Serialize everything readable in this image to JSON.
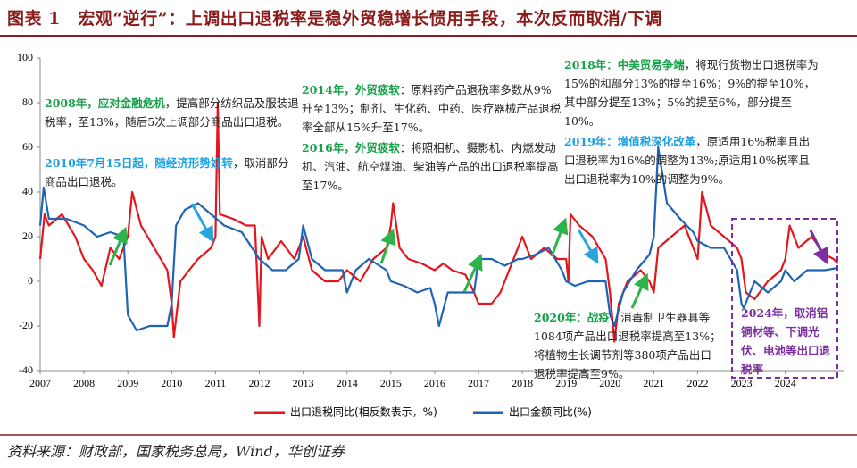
{
  "chart_data": {
    "type": "line",
    "title": "图表 1　宏观“逆行”：上调出口退税率是稳外贸稳增长惯用手段，本次反而取消/下调",
    "source": "资料来源：财政部，国家税务总局，Wind，华创证券",
    "xlim": [
      2007,
      2025.33
    ],
    "xticks": [
      2007,
      2008,
      2009,
      2010,
      2011,
      2012,
      2013,
      2014,
      2015,
      2016,
      2017,
      2018,
      2019,
      2020,
      2021,
      2022,
      2023,
      2024
    ],
    "ylim": [
      -40,
      100
    ],
    "yticks": [
      -40,
      -20,
      0,
      20,
      40,
      60,
      80,
      100
    ],
    "series": [
      {
        "name": "出口退税同比(相反数表示，%)",
        "color": "#e3161e",
        "x": [
          2007.0,
          2007.1,
          2007.2,
          2007.5,
          2007.8,
          2008.0,
          2008.2,
          2008.4,
          2008.6,
          2008.8,
          2009.0,
          2009.1,
          2009.3,
          2009.6,
          2009.9,
          2010.0,
          2010.05,
          2010.2,
          2010.4,
          2010.6,
          2010.9,
          2011.0,
          2011.05,
          2011.1,
          2011.4,
          2011.7,
          2011.9,
          2012.0,
          2012.05,
          2012.2,
          2012.5,
          2012.8,
          2013.0,
          2013.2,
          2013.5,
          2013.8,
          2014.0,
          2014.3,
          2014.6,
          2014.9,
          2015.0,
          2015.05,
          2015.2,
          2015.4,
          2015.7,
          2016.0,
          2016.2,
          2016.4,
          2016.7,
          2016.9,
          2017.0,
          2017.3,
          2017.5,
          2017.8,
          2018.0,
          2018.2,
          2018.5,
          2018.8,
          2019.0,
          2019.05,
          2019.1,
          2019.3,
          2019.6,
          2019.9,
          2020.0,
          2020.1,
          2020.2,
          2020.4,
          2020.7,
          2020.9,
          2021.0,
          2021.1,
          2021.4,
          2021.7,
          2021.9,
          2022.0,
          2022.1,
          2022.3,
          2022.6,
          2022.9,
          2023.0,
          2023.1,
          2023.3,
          2023.6,
          2023.9,
          2024.0,
          2024.1,
          2024.3,
          2024.6,
          2024.9,
          2025.1,
          2025.2
        ],
        "values": [
          10,
          30,
          25,
          30,
          20,
          10,
          5,
          -2,
          15,
          10,
          20,
          40,
          25,
          15,
          5,
          -10,
          -25,
          0,
          5,
          10,
          15,
          20,
          80,
          30,
          28,
          25,
          25,
          -20,
          20,
          10,
          18,
          10,
          20,
          5,
          0,
          0,
          5,
          0,
          10,
          15,
          25,
          35,
          15,
          10,
          8,
          5,
          8,
          5,
          3,
          -5,
          -10,
          -10,
          -5,
          10,
          20,
          10,
          15,
          10,
          10,
          0,
          30,
          25,
          20,
          10,
          -5,
          -27,
          -10,
          0,
          5,
          0,
          -5,
          15,
          20,
          25,
          15,
          10,
          40,
          25,
          20,
          15,
          10,
          -5,
          -8,
          0,
          5,
          10,
          25,
          15,
          20,
          12,
          10,
          8
        ]
      },
      {
        "name": "出口金额同比(%)",
        "color": "#1f64b4",
        "x": [
          2007.0,
          2007.08,
          2007.2,
          2007.6,
          2008.0,
          2008.3,
          2008.6,
          2008.9,
          2009.0,
          2009.2,
          2009.5,
          2009.9,
          2010.0,
          2010.1,
          2010.3,
          2010.6,
          2010.9,
          2011.2,
          2011.6,
          2012.0,
          2012.3,
          2012.6,
          2012.9,
          2013.0,
          2013.2,
          2013.5,
          2013.9,
          2014.0,
          2014.2,
          2014.5,
          2014.9,
          2015.0,
          2015.3,
          2015.6,
          2015.9,
          2016.0,
          2016.1,
          2016.3,
          2016.6,
          2016.9,
          2017.0,
          2017.3,
          2017.6,
          2017.9,
          2018.0,
          2018.3,
          2018.6,
          2018.9,
          2019.0,
          2019.2,
          2019.5,
          2019.9,
          2020.0,
          2020.1,
          2020.3,
          2020.6,
          2020.9,
          2021.0,
          2021.1,
          2021.3,
          2021.6,
          2021.9,
          2022.0,
          2022.3,
          2022.6,
          2022.9,
          2023.0,
          2023.05,
          2023.3,
          2023.6,
          2023.9,
          2024.0,
          2024.2,
          2024.5,
          2024.9,
          2025.2
        ],
        "values": [
          25,
          42,
          28,
          28,
          25,
          20,
          22,
          20,
          -15,
          -22,
          -20,
          -20,
          -10,
          25,
          32,
          35,
          30,
          25,
          22,
          10,
          5,
          5,
          10,
          25,
          10,
          5,
          5,
          -5,
          5,
          10,
          5,
          0,
          -2,
          -5,
          -3,
          -10,
          -20,
          -5,
          -5,
          -5,
          10,
          10,
          7,
          10,
          10,
          12,
          15,
          5,
          0,
          -2,
          0,
          0,
          -15,
          -20,
          -5,
          5,
          12,
          20,
          60,
          35,
          28,
          22,
          18,
          15,
          15,
          5,
          -10,
          -12,
          0,
          -5,
          0,
          5,
          0,
          5,
          5,
          6
        ]
      }
    ],
    "annotations": [
      {
        "heading": "2008年，应对金融危机",
        "text": "，提高部分纺织品及服装退税率，至13%，随后5次上调部分商品出口退税。",
        "color": "#17a04a"
      },
      {
        "heading": "2010年7月15日起，随经济形势好转",
        "text": "，取消部分商品出口退税。",
        "color": "#1ea0e0"
      },
      {
        "heading": "2014年，外贸疲软",
        "text": "：原料药产品退税率多数从9%升至13%；制剂、生化药、中药、医疗器械产品退税率全部从15%升至17%。",
        "color": "#17a04a"
      },
      {
        "heading": "2016年，外贸疲软",
        "text": "：将照相机、摄影机、内燃发动机、汽油、航空煤油、柴油等产品的出口退税率提高至17%。",
        "color": "#17a04a"
      },
      {
        "heading": "2018年：中美贸易争端",
        "text": "，将现行货物出口退税率为15%的和部分13%的提至16%；9%的提至10%，其中部分提至13%；5%的提至6%，部分提至10%。",
        "color": "#17a04a"
      },
      {
        "heading": "2019年：增值税深化改革",
        "text": "，原适用16%税率且出口退税率为16%的调整为13%;原适用10%税率且出口退税率为10%的调整为9%。",
        "color": "#1ea0e0"
      },
      {
        "heading": "2020年：战疫",
        "text": "，消毒制卫生器具等1084项产品出口退税率提高至13%；将植物生长调节剂等380项产品出口退税率提高至9%。",
        "color": "#17a04a"
      },
      {
        "heading": "2024年，取消铝铜材等、下调光伏、电池等出口退税率",
        "text": "",
        "color": "#7b2fa0"
      }
    ]
  }
}
